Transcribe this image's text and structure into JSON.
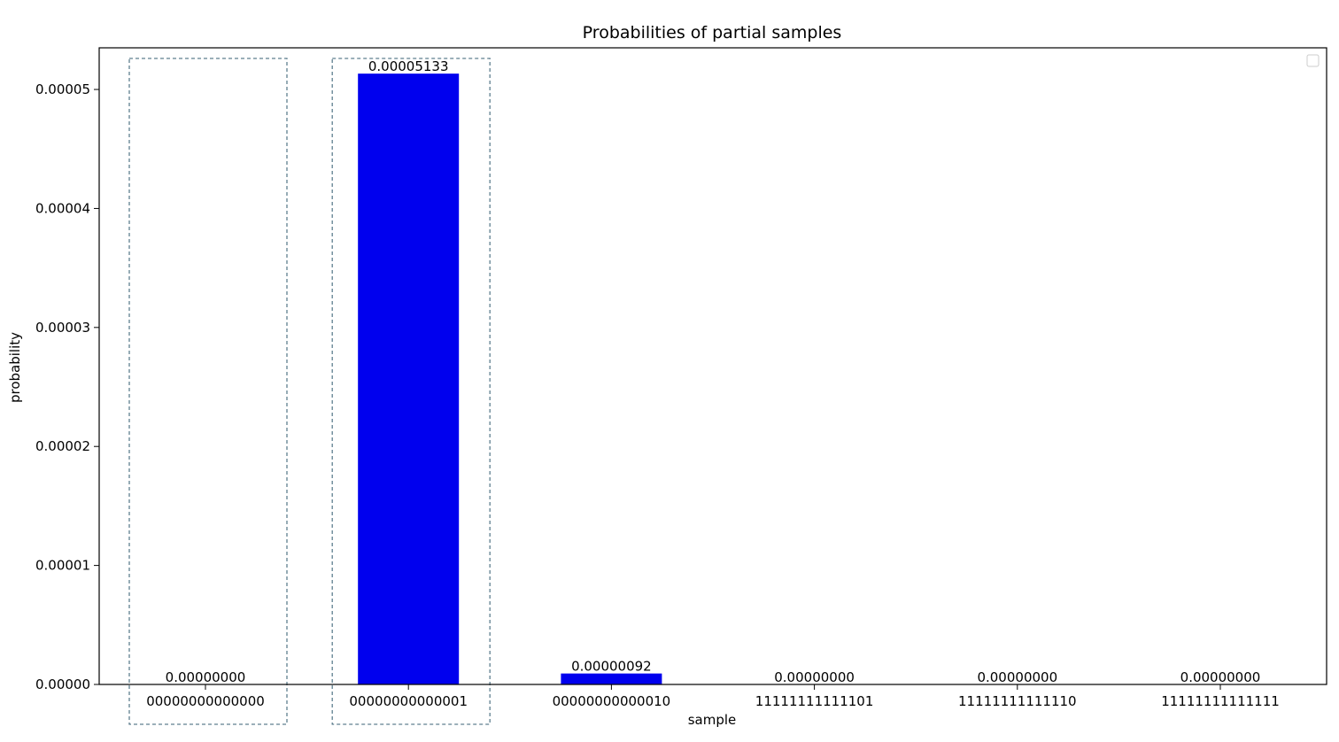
{
  "chart_data": {
    "type": "bar",
    "title": "Probabilities of partial samples",
    "xlabel": "sample",
    "ylabel": "probability",
    "categories": [
      "00000000000000",
      "00000000000001",
      "00000000000010",
      "11111111111101",
      "11111111111110",
      "11111111111111"
    ],
    "values": [
      0.0,
      5.133e-05,
      9.2e-07,
      0.0,
      0.0,
      0.0
    ],
    "value_labels": [
      "0.00000000",
      "0.00005133",
      "0.00000092",
      "0.00000000",
      "0.00000000",
      "0.00000000"
    ],
    "ylim": [
      0,
      5.35e-05
    ],
    "yticks": [
      0,
      1e-05,
      2e-05,
      3e-05,
      4e-05,
      5e-05
    ],
    "ytick_labels": [
      "0.00000",
      "0.00001",
      "0.00002",
      "0.00003",
      "0.00004",
      "0.00005"
    ],
    "highlighted_categories": [
      0,
      1
    ],
    "bar_color": "#0000ee",
    "highlight_box_color": "#5f7f8f",
    "grid": false,
    "legend": "top-right (empty)"
  }
}
